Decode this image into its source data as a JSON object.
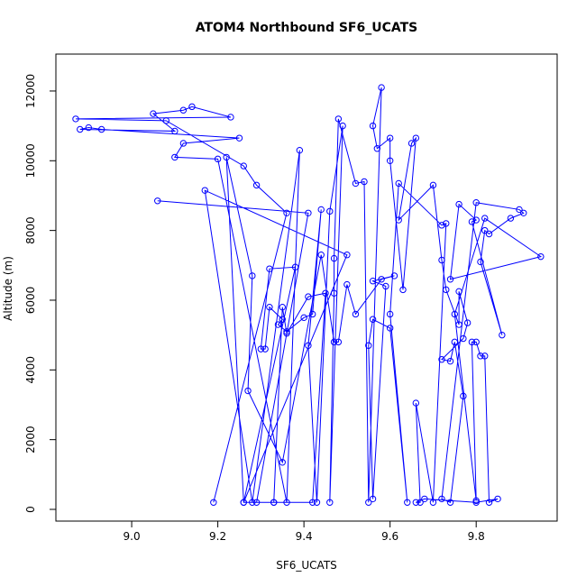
{
  "chart_data": {
    "type": "line",
    "title": "ATOM4 Northbound SF6_UCATS",
    "xlabel": "SF6_UCATS",
    "ylabel": "Altitude (m)",
    "color": "#0000ff",
    "marker": "open-circle",
    "xlim": [
      8.824,
      9.988
    ],
    "ylim": [
      -336,
      13059
    ],
    "xticks": [
      {
        "value": 9,
        "label": "9.0"
      },
      9.2,
      9.4,
      9.6,
      9.8
    ],
    "yticks": [
      0,
      2000,
      4000,
      6000,
      8000,
      10000,
      12000
    ],
    "x": [
      9.19,
      9.36,
      9.29,
      9.26,
      9.08,
      8.87,
      9.23,
      9.14,
      9.12,
      9.05,
      9.1,
      8.88,
      8.9,
      8.93,
      9.25,
      9.12,
      9.1,
      9.2,
      9.36,
      9.39,
      9.28,
      9.17,
      9.5,
      9.26,
      9.38,
      9.32,
      9.3,
      9.31,
      9.32,
      9.35,
      9.34,
      9.36,
      9.4,
      9.42,
      9.44,
      9.41,
      9.43,
      9.46,
      9.49,
      9.46,
      9.47,
      9.47,
      9.48,
      9.52,
      9.54,
      9.55,
      9.58,
      9.56,
      9.57,
      9.6,
      9.6,
      9.63,
      9.66,
      9.65,
      9.62,
      9.7,
      9.72,
      9.73,
      9.76,
      9.76,
      9.78,
      9.77,
      9.72,
      9.74,
      9.75,
      9.77,
      9.74,
      9.72,
      9.8,
      9.9,
      9.91,
      9.88,
      9.83,
      9.82,
      9.81,
      9.86,
      9.79,
      9.8,
      9.76,
      9.74,
      9.95,
      9.82,
      9.75,
      9.8,
      9.79,
      9.8,
      9.81,
      9.82,
      9.83,
      9.85,
      9.8,
      9.68,
      9.66,
      9.67,
      9.66,
      9.7,
      9.73,
      9.72,
      9.62,
      9.6,
      9.64,
      9.6,
      9.56,
      9.55,
      9.56,
      9.59,
      9.56,
      9.61,
      9.58,
      9.52,
      9.5,
      9.48,
      9.47,
      9.44,
      9.35,
      9.27,
      9.28,
      9.22,
      9.26,
      9.33,
      9.35,
      9.36,
      9.41,
      9.45,
      9.42,
      9.33,
      9.29,
      9.41,
      9.06
    ],
    "values": [
      200,
      8500,
      9300,
      9850,
      11150,
      11200,
      11250,
      11550,
      11450,
      11350,
      10850,
      10900,
      10950,
      10900,
      10650,
      10500,
      10100,
      10050,
      200,
      10300,
      200,
      9150,
      7300,
      200,
      6950,
      6900,
      4600,
      4600,
      5800,
      5450,
      5300,
      5100,
      5500,
      5600,
      8600,
      4700,
      200,
      8550,
      11000,
      200,
      6200,
      7200,
      11200,
      9350,
      9400,
      200,
      12100,
      11000,
      10350,
      10650,
      10000,
      6300,
      10650,
      10500,
      8300,
      9300,
      7150,
      6300,
      5300,
      6250,
      5350,
      4900,
      4300,
      4250,
      4800,
      3250,
      200,
      300,
      8800,
      8600,
      8500,
      8350,
      7900,
      8000,
      7100,
      5000,
      8250,
      8300,
      8750,
      6600,
      7250,
      8350,
      5600,
      250,
      4800,
      4800,
      4400,
      4400,
      200,
      300,
      200,
      300,
      200,
      200,
      3050,
      200,
      8200,
      8150,
      9350,
      5600,
      200,
      5200,
      5450,
      4700,
      300,
      6400,
      6550,
      6700,
      6600,
      5600,
      6450,
      4800,
      4800,
      7300,
      1350,
      3400,
      6700,
      10100,
      200,
      200,
      5800,
      5050,
      6100,
      6200,
      200,
      200,
      200,
      8500,
      8850
    ]
  }
}
